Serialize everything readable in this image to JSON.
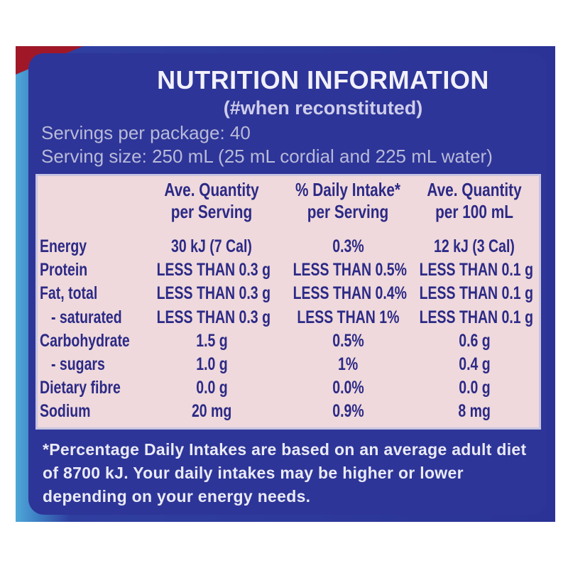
{
  "header": {
    "title": "NUTRITION INFORMATION",
    "subtitle": "(#when reconstituted)",
    "servings": "Servings per package: 40",
    "serving_size": "Serving size: 250 mL (25 mL cordial and 225 mL water)"
  },
  "table": {
    "columns": [
      "Ave. Quantity per Serving",
      "% Daily Intake* per Serving",
      "Ave. Quantity per 100 mL"
    ],
    "rows": [
      [
        "Energy",
        "30 kJ (7 Cal)",
        "0.3%",
        "12 kJ (3 Cal)"
      ],
      [
        "Protein",
        "LESS THAN 0.3 g",
        "LESS THAN 0.5%",
        "LESS THAN 0.1 g"
      ],
      [
        "Fat, total",
        "LESS THAN 0.3 g",
        "LESS THAN 0.4%",
        "LESS THAN 0.1 g"
      ],
      [
        "- saturated",
        "LESS THAN 0.3 g",
        "LESS THAN 1%",
        "LESS THAN 0.1 g"
      ],
      [
        "Carbohydrate",
        "1.5 g",
        "0.5%",
        "0.6 g"
      ],
      [
        "- sugars",
        "1.0 g",
        "1%",
        "0.4 g"
      ],
      [
        "Dietary fibre",
        "0.0 g",
        "0.0%",
        "0.0 g"
      ],
      [
        "Sodium",
        "20 mg",
        "0.9%",
        "8 mg"
      ]
    ]
  },
  "footnote": "*Percentage Daily Intakes are based on an average adult diet of 8700 kJ. Your daily intakes may be higher or lower depending on your energy needs."
}
